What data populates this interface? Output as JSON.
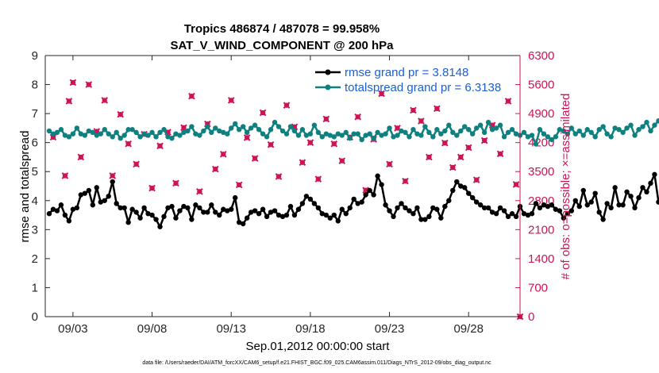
{
  "chart_data": {
    "type": "line",
    "title": "Tropics 486874 / 487078 = 99.958%",
    "subtitle": "SAT_V_WIND_COMPONENT @ 200 hPa",
    "xlabel": "Sep.01,2012 00:00:00 start",
    "ylabel": "rmse and totalspread",
    "ylabel_right": "# of obs: o=possible; ×=assimilated",
    "footer": "data file: /Users/raeder/DAI/ATM_forcXX/CAM6_setup/f.e21.FHIST_BGC.f09_025.CAM6assim.011/Diags_NTrS_2012-09/obs_diag_output.nc",
    "xlim": [
      1.25,
      31.25
    ],
    "ylim": [
      0,
      9
    ],
    "ylim_right": [
      0,
      6300
    ],
    "x_ticks": [
      3,
      8,
      13,
      18,
      23,
      28
    ],
    "x_tick_labels": [
      "09/03",
      "09/08",
      "09/13",
      "09/18",
      "09/23",
      "09/28"
    ],
    "y_ticks": [
      "0",
      "1",
      "2",
      "3",
      "4",
      "5",
      "6",
      "7",
      "8",
      "9"
    ],
    "y_ticks_right": [
      "0",
      "700",
      "1400",
      "2100",
      "2800",
      "3500",
      "4200",
      "4900",
      "5600",
      "6300"
    ],
    "x_start": 1.5,
    "x_step": 0.25,
    "series": [
      {
        "name": "rmse grand pr = 3.8148",
        "axis": "left",
        "color": "#000000",
        "values": [
          3.55,
          3.7,
          3.65,
          3.85,
          3.5,
          3.3,
          3.7,
          3.75,
          4.2,
          4.25,
          4.35,
          3.85,
          4.45,
          3.95,
          4.0,
          4.15,
          4.65,
          3.9,
          3.75,
          3.75,
          3.25,
          3.7,
          3.6,
          3.4,
          3.75,
          3.55,
          3.5,
          3.35,
          3.1,
          3.45,
          3.75,
          3.8,
          3.4,
          3.65,
          3.8,
          3.75,
          3.35,
          3.85,
          3.75,
          3.6,
          3.6,
          3.85,
          3.6,
          3.5,
          3.7,
          3.65,
          3.7,
          4.1,
          3.25,
          3.2,
          3.4,
          3.6,
          3.65,
          3.55,
          3.7,
          3.45,
          3.6,
          3.65,
          3.5,
          3.45,
          3.5,
          3.8,
          3.5,
          3.7,
          3.9,
          4.15,
          4.05,
          3.9,
          3.75,
          3.55,
          3.5,
          3.4,
          3.5,
          3.3,
          3.7,
          3.55,
          3.75,
          4.05,
          3.9,
          3.95,
          4.2,
          4.35,
          4.2,
          4.85,
          4.55,
          3.85,
          3.65,
          3.45,
          3.75,
          3.9,
          3.75,
          3.65,
          3.55,
          3.75,
          3.35,
          3.35,
          3.45,
          3.75,
          3.7,
          3.4,
          3.8,
          4.0,
          4.35,
          4.65,
          4.5,
          4.45,
          4.25,
          4.1,
          3.95,
          3.85,
          3.75,
          3.75,
          3.6,
          3.55,
          3.75,
          3.65,
          3.45,
          3.55,
          3.45,
          3.8,
          3.55,
          3.5,
          3.55,
          3.9,
          3.75,
          3.85,
          3.8,
          3.85,
          3.7,
          3.65,
          3.4,
          3.55,
          3.65,
          4.0,
          3.8,
          4.35,
          3.85,
          3.95,
          4.25,
          3.6,
          3.35,
          3.9,
          3.75,
          4.45,
          3.85,
          3.85,
          4.3,
          4.15,
          3.75,
          4.1,
          4.45,
          4.3,
          4.6,
          4.9,
          3.95
        ],
        "marker": "circle"
      },
      {
        "name": "totalspread grand pr = 6.3138",
        "axis": "left",
        "color": "#0f8080",
        "values": [
          6.4,
          6.3,
          6.35,
          6.45,
          6.25,
          6.2,
          6.3,
          6.5,
          6.3,
          6.25,
          6.4,
          6.35,
          6.25,
          6.3,
          6.45,
          6.3,
          6.2,
          6.35,
          6.15,
          6.25,
          6.45,
          6.45,
          6.35,
          6.2,
          6.3,
          6.25,
          6.35,
          6.2,
          6.35,
          6.45,
          6.2,
          6.15,
          6.3,
          6.25,
          6.35,
          6.4,
          6.55,
          6.3,
          6.25,
          6.4,
          6.55,
          6.35,
          6.5,
          6.4,
          6.35,
          6.3,
          6.5,
          6.65,
          6.45,
          6.55,
          6.35,
          6.5,
          6.6,
          6.45,
          6.3,
          6.2,
          6.45,
          6.7,
          6.55,
          6.4,
          6.3,
          6.55,
          6.4,
          6.25,
          6.45,
          6.25,
          6.3,
          6.6,
          6.35,
          6.2,
          6.3,
          6.25,
          6.2,
          6.3,
          6.25,
          6.35,
          6.15,
          6.3,
          6.3,
          6.1,
          6.25,
          6.3,
          6.15,
          6.35,
          6.25,
          6.3,
          6.5,
          6.2,
          6.25,
          6.4,
          6.35,
          6.2,
          6.45,
          6.3,
          6.25,
          6.55,
          6.35,
          6.2,
          6.45,
          6.3,
          6.4,
          6.6,
          6.35,
          6.25,
          6.4,
          6.55,
          6.45,
          6.3,
          6.5,
          6.6,
          6.35,
          6.7,
          6.45,
          6.5,
          6.6,
          6.2,
          6.35,
          6.45,
          6.3,
          6.25,
          6.35,
          6.2,
          6.25,
          5.95,
          6.45,
          6.3,
          6.2,
          6.1,
          6.2,
          6.45,
          6.4,
          6.3,
          6.5,
          6.3,
          6.4,
          6.25,
          6.45,
          6.35,
          6.2,
          6.45,
          6.55,
          6.3,
          6.2,
          6.5,
          6.45,
          6.35,
          6.5,
          6.6,
          6.25,
          6.45,
          6.55,
          6.7,
          6.4,
          6.6,
          6.75
        ],
        "marker": "circle"
      }
    ],
    "obs_possible": [
      {
        "x": 1.75,
        "y": 4330
      },
      {
        "x": 2.75,
        "y": 5200
      },
      {
        "x": 2.5,
        "y": 3400
      },
      {
        "x": 3.0,
        "y": 5650
      },
      {
        "x": 3.5,
        "y": 3850
      },
      {
        "x": 4.0,
        "y": 5600
      },
      {
        "x": 4.5,
        "y": 4470
      },
      {
        "x": 5.0,
        "y": 5220
      },
      {
        "x": 5.5,
        "y": 3400
      },
      {
        "x": 6.0,
        "y": 4880
      },
      {
        "x": 6.5,
        "y": 4170
      },
      {
        "x": 7.0,
        "y": 3680
      },
      {
        "x": 7.5,
        "y": 4400
      },
      {
        "x": 8.0,
        "y": 3100
      },
      {
        "x": 8.5,
        "y": 4120
      },
      {
        "x": 9.0,
        "y": 4450
      },
      {
        "x": 9.5,
        "y": 3220
      },
      {
        "x": 10.0,
        "y": 4560
      },
      {
        "x": 10.5,
        "y": 5320
      },
      {
        "x": 11.0,
        "y": 3020
      },
      {
        "x": 11.5,
        "y": 4650
      },
      {
        "x": 12.0,
        "y": 3560
      },
      {
        "x": 12.5,
        "y": 3920
      },
      {
        "x": 13.0,
        "y": 5220
      },
      {
        "x": 13.5,
        "y": 3180
      },
      {
        "x": 14.0,
        "y": 4320
      },
      {
        "x": 14.5,
        "y": 3820
      },
      {
        "x": 15.0,
        "y": 4920
      },
      {
        "x": 15.5,
        "y": 4150
      },
      {
        "x": 16.0,
        "y": 3380
      },
      {
        "x": 16.5,
        "y": 5100
      },
      {
        "x": 17.0,
        "y": 4580
      },
      {
        "x": 17.5,
        "y": 3720
      },
      {
        "x": 18.0,
        "y": 4200
      },
      {
        "x": 18.5,
        "y": 3320
      },
      {
        "x": 19.0,
        "y": 4770
      },
      {
        "x": 19.5,
        "y": 4170
      },
      {
        "x": 20.0,
        "y": 3760
      },
      {
        "x": 20.5,
        "y": 4330
      },
      {
        "x": 21.0,
        "y": 4820
      },
      {
        "x": 21.5,
        "y": 3050
      },
      {
        "x": 22.0,
        "y": 4280
      },
      {
        "x": 22.5,
        "y": 5380
      },
      {
        "x": 23.0,
        "y": 3680
      },
      {
        "x": 23.5,
        "y": 4550
      },
      {
        "x": 24.0,
        "y": 3270
      },
      {
        "x": 24.5,
        "y": 4980
      },
      {
        "x": 25.0,
        "y": 4720
      },
      {
        "x": 25.5,
        "y": 3850
      },
      {
        "x": 26.0,
        "y": 5020
      },
      {
        "x": 26.5,
        "y": 4190
      },
      {
        "x": 27.0,
        "y": 3600
      },
      {
        "x": 27.5,
        "y": 3850
      },
      {
        "x": 28.0,
        "y": 4080
      },
      {
        "x": 28.5,
        "y": 3300
      },
      {
        "x": 29.0,
        "y": 4250
      },
      {
        "x": 29.5,
        "y": 4620
      },
      {
        "x": 30.0,
        "y": 3930
      },
      {
        "x": 30.5,
        "y": 5200
      },
      {
        "x": 31.0,
        "y": 3190
      },
      {
        "x": 31.25,
        "y": 0
      }
    ],
    "obs_assimilated": [
      {
        "x": 1.75,
        "y": 4330
      },
      {
        "x": 2.75,
        "y": 5200
      },
      {
        "x": 2.5,
        "y": 3400
      },
      {
        "x": 3.0,
        "y": 5650
      },
      {
        "x": 3.5,
        "y": 3850
      },
      {
        "x": 4.0,
        "y": 5600
      },
      {
        "x": 4.5,
        "y": 4470
      },
      {
        "x": 5.0,
        "y": 5220
      },
      {
        "x": 5.5,
        "y": 3400
      },
      {
        "x": 6.0,
        "y": 4880
      },
      {
        "x": 6.5,
        "y": 4170
      },
      {
        "x": 7.0,
        "y": 3680
      },
      {
        "x": 7.5,
        "y": 4400
      },
      {
        "x": 8.0,
        "y": 3100
      },
      {
        "x": 8.5,
        "y": 4120
      },
      {
        "x": 9.0,
        "y": 4450
      },
      {
        "x": 9.5,
        "y": 3220
      },
      {
        "x": 10.0,
        "y": 4560
      },
      {
        "x": 10.5,
        "y": 5320
      },
      {
        "x": 11.0,
        "y": 3020
      },
      {
        "x": 11.5,
        "y": 4650
      },
      {
        "x": 12.0,
        "y": 3560
      },
      {
        "x": 12.5,
        "y": 3920
      },
      {
        "x": 13.0,
        "y": 5220
      },
      {
        "x": 13.5,
        "y": 3180
      },
      {
        "x": 14.0,
        "y": 4320
      },
      {
        "x": 14.5,
        "y": 3820
      },
      {
        "x": 15.0,
        "y": 4920
      },
      {
        "x": 15.5,
        "y": 4150
      },
      {
        "x": 16.0,
        "y": 3380
      },
      {
        "x": 16.5,
        "y": 5100
      },
      {
        "x": 17.0,
        "y": 4580
      },
      {
        "x": 17.5,
        "y": 3720
      },
      {
        "x": 18.0,
        "y": 4200
      },
      {
        "x": 18.5,
        "y": 3320
      },
      {
        "x": 19.0,
        "y": 4770
      },
      {
        "x": 19.5,
        "y": 4170
      },
      {
        "x": 20.0,
        "y": 3760
      },
      {
        "x": 20.5,
        "y": 4330
      },
      {
        "x": 21.0,
        "y": 4820
      },
      {
        "x": 21.5,
        "y": 3050
      },
      {
        "x": 22.0,
        "y": 4280
      },
      {
        "x": 22.5,
        "y": 5380
      },
      {
        "x": 23.0,
        "y": 3680
      },
      {
        "x": 23.5,
        "y": 4550
      },
      {
        "x": 24.0,
        "y": 3270
      },
      {
        "x": 24.5,
        "y": 4980
      },
      {
        "x": 25.0,
        "y": 4720
      },
      {
        "x": 25.5,
        "y": 3850
      },
      {
        "x": 26.0,
        "y": 5020
      },
      {
        "x": 26.5,
        "y": 4190
      },
      {
        "x": 27.0,
        "y": 3600
      },
      {
        "x": 27.5,
        "y": 3850
      },
      {
        "x": 28.0,
        "y": 4080
      },
      {
        "x": 28.5,
        "y": 3300
      },
      {
        "x": 29.0,
        "y": 4250
      },
      {
        "x": 29.5,
        "y": 4620
      },
      {
        "x": 30.0,
        "y": 3930
      },
      {
        "x": 30.5,
        "y": 5200
      },
      {
        "x": 31.0,
        "y": 3190
      },
      {
        "x": 31.25,
        "y": 0
      }
    ],
    "right_axis_color": "#cc1456",
    "legend_location": "top-right",
    "grid": false
  }
}
